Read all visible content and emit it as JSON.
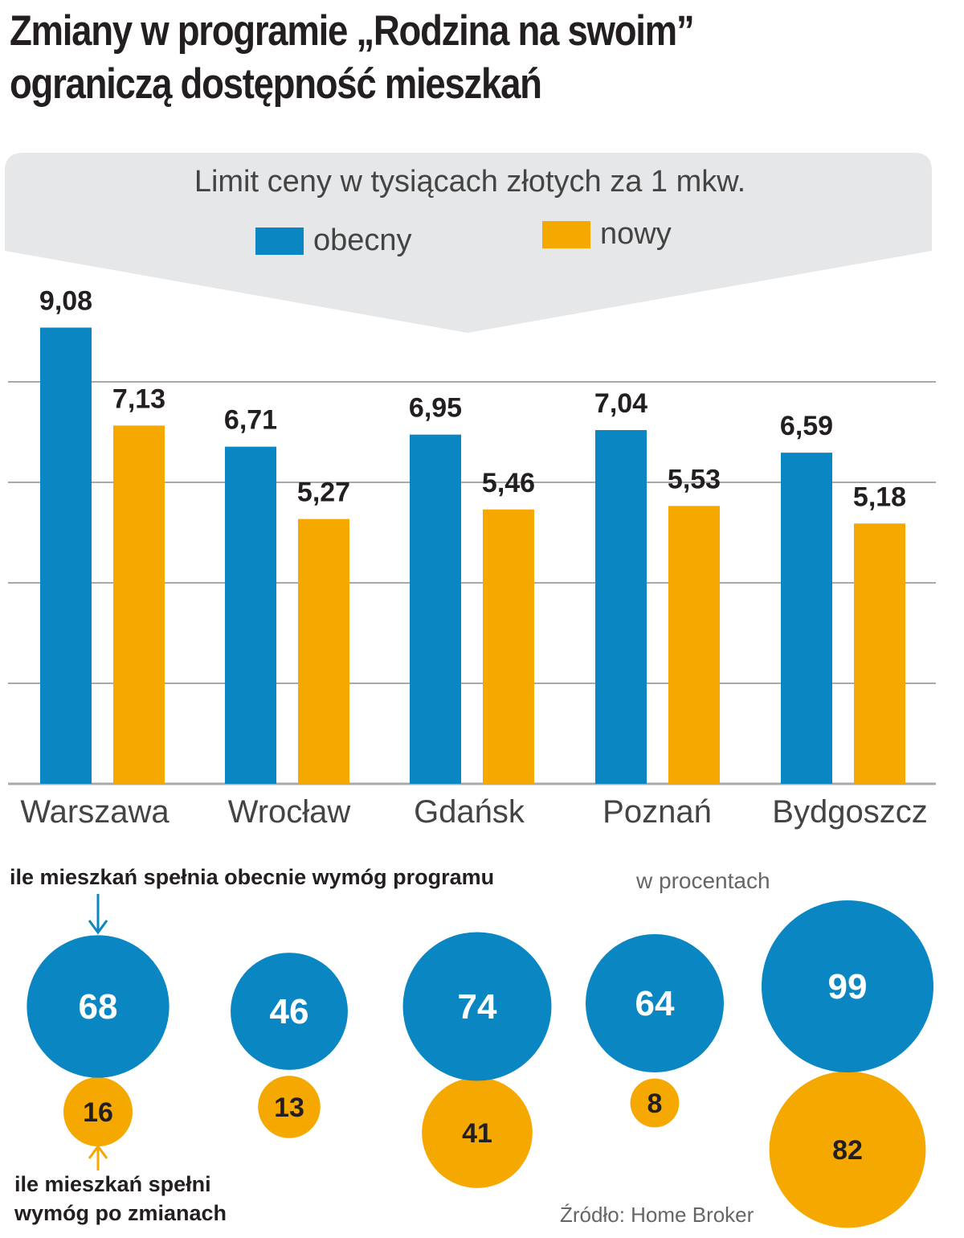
{
  "title": {
    "line1": "Zmiany w programie „Rodzina na swoim”",
    "line2": "ograniczą dostępność mieszkań"
  },
  "legend": {
    "header": "Limit ceny w tysiącach złotych za 1 mkw.",
    "series_current": "obecny",
    "series_new": "nowy"
  },
  "colors": {
    "current": "#0a87c2",
    "new": "#f5a800",
    "callout_bg": "#e6e7e8",
    "grid": "#a7a9ac"
  },
  "chart_data": [
    {
      "type": "bar",
      "title": "Limit ceny w tysiącach złotych za 1 mkw.",
      "categories": [
        "Warszawa",
        "Wrocław",
        "Gdańsk",
        "Poznań",
        "Bydgoszcz"
      ],
      "series": [
        {
          "name": "obecny",
          "values": [
            9.08,
            6.71,
            6.95,
            7.04,
            6.59
          ]
        },
        {
          "name": "nowy",
          "values": [
            7.13,
            5.27,
            5.46,
            5.53,
            5.18
          ]
        }
      ],
      "value_labels": {
        "obecny": [
          "9,08",
          "6,71",
          "6,95",
          "7,04",
          "6,59"
        ],
        "nowy": [
          "7,13",
          "5,27",
          "5,46",
          "5,53",
          "5,18"
        ]
      },
      "ylim": [
        0,
        10
      ],
      "gridlines": [
        2,
        4,
        6,
        8
      ],
      "xlabel": "",
      "ylabel": ""
    },
    {
      "type": "bubble",
      "title": "ile mieszkań spełnia obecnie wymóg programu",
      "unit": "w procentach",
      "categories": [
        "Warszawa",
        "Wrocław",
        "Gdańsk",
        "Poznań",
        "Bydgoszcz"
      ],
      "series": [
        {
          "name": "ile mieszkań spełnia obecnie wymóg programu",
          "values": [
            68,
            46,
            74,
            64,
            99
          ]
        },
        {
          "name": "ile mieszkań spełni wymóg po zmianach",
          "values": [
            16,
            13,
            41,
            8,
            82
          ]
        }
      ]
    }
  ],
  "bubbles": {
    "current_label": "ile mieszkań spełnia obecnie wymóg programu",
    "unit": "w procentach",
    "new_label_line1": "ile mieszkań spełni",
    "new_label_line2": "wymóg po zmianach"
  },
  "source": "Źródło: Home Broker"
}
